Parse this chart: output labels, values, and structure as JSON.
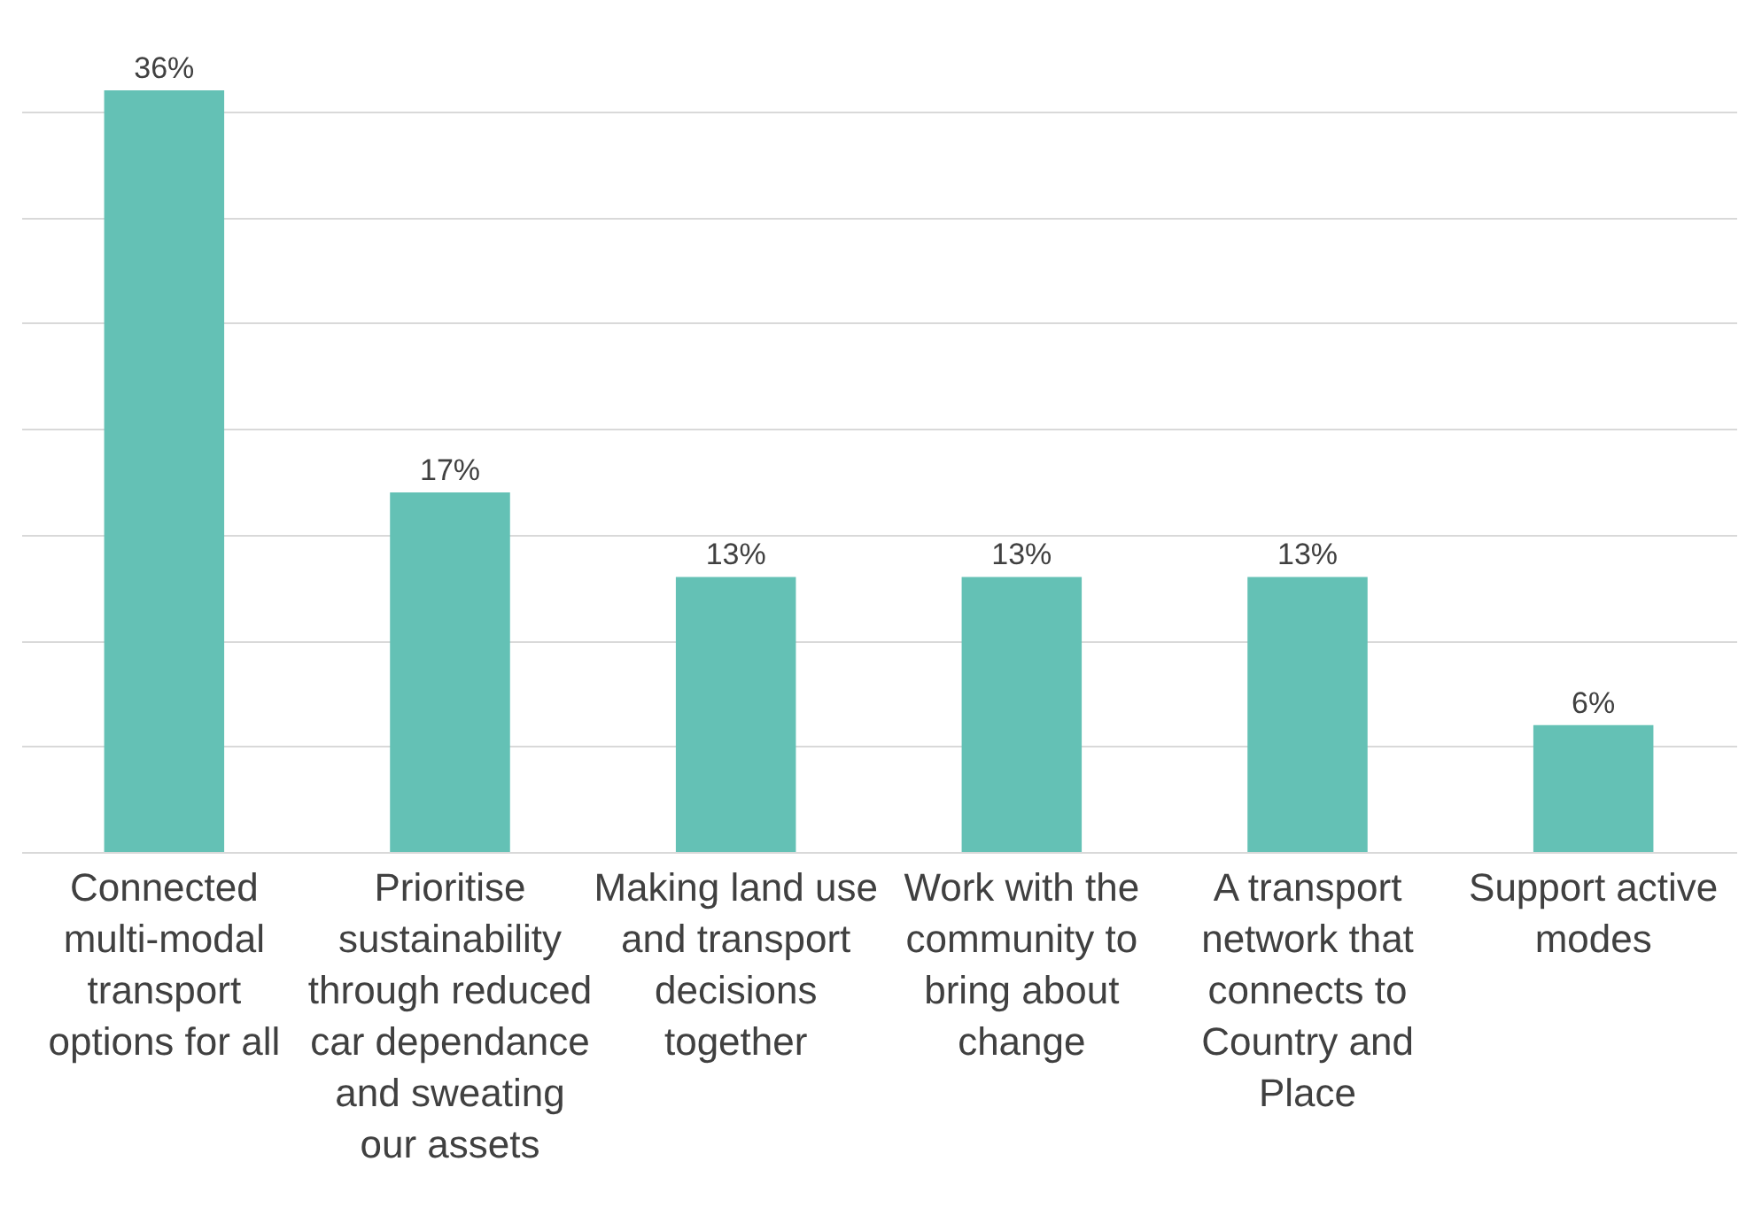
{
  "chart_data": {
    "type": "bar",
    "categories": [
      "Connected multi-modal transport options for all",
      "Prioritise sustainability through reduced car dependance and sweating our assets",
      "Making land use and transport decisions together",
      "Work with the community to bring about change",
      "A transport network that connects to Country and Place",
      "Support active modes"
    ],
    "values": [
      36,
      17,
      13,
      13,
      13,
      6
    ],
    "value_labels": [
      "36%",
      "17%",
      "13%",
      "13%",
      "13%",
      "6%"
    ],
    "color": "#64c1b5",
    "yticks": [
      {
        "value": 0,
        "label": null
      },
      {
        "value": 5,
        "label": null
      },
      {
        "value": 10,
        "label": null
      },
      {
        "value": 15,
        "label": null
      },
      {
        "value": 20,
        "label": null
      },
      {
        "value": 25,
        "label": null
      },
      {
        "value": 30,
        "label": null
      },
      {
        "value": 35,
        "label": null
      }
    ],
    "grid": "y",
    "tick_labels": "x"
  }
}
